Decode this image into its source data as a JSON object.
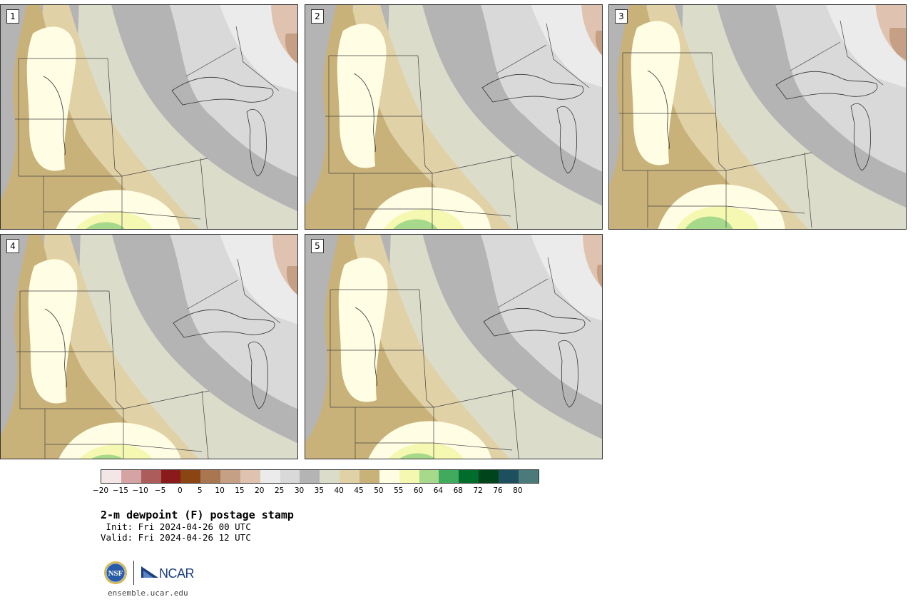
{
  "members": [
    {
      "id": "1"
    },
    {
      "id": "2"
    },
    {
      "id": "3"
    },
    {
      "id": "4"
    },
    {
      "id": "5"
    }
  ],
  "colorbar": {
    "colors": [
      "#f2e6e6",
      "#d4a4a4",
      "#ad5c5c",
      "#8b1a1a",
      "#8b4513",
      "#a97652",
      "#c6a085",
      "#dfc3b0",
      "#ebebeb",
      "#d9d9d9",
      "#b4b4b4",
      "#dcdccb",
      "#e0d1a6",
      "#c9b27a",
      "#fffde4",
      "#f4f8b0",
      "#a6d98b",
      "#41ab5d",
      "#006d2c",
      "#00441b",
      "#1d4f5f",
      "#4a7a7a"
    ],
    "tick_labels": [
      "−20",
      "−15",
      "−10",
      "−5",
      "0",
      "5",
      "10",
      "15",
      "20",
      "25",
      "30",
      "35",
      "40",
      "45",
      "50",
      "55",
      "60",
      "64",
      "68",
      "72",
      "76",
      "80"
    ]
  },
  "header": {
    "title": "2-m dewpoint (F) postage stamp",
    "init": " Init: Fri 2024-04-26 00 UTC",
    "valid": "Valid: Fri 2024-04-26 12 UTC"
  },
  "footer": {
    "nsf_label": "NSF",
    "ncar_label": "NCAR",
    "website": "ensemble.ucar.edu"
  }
}
